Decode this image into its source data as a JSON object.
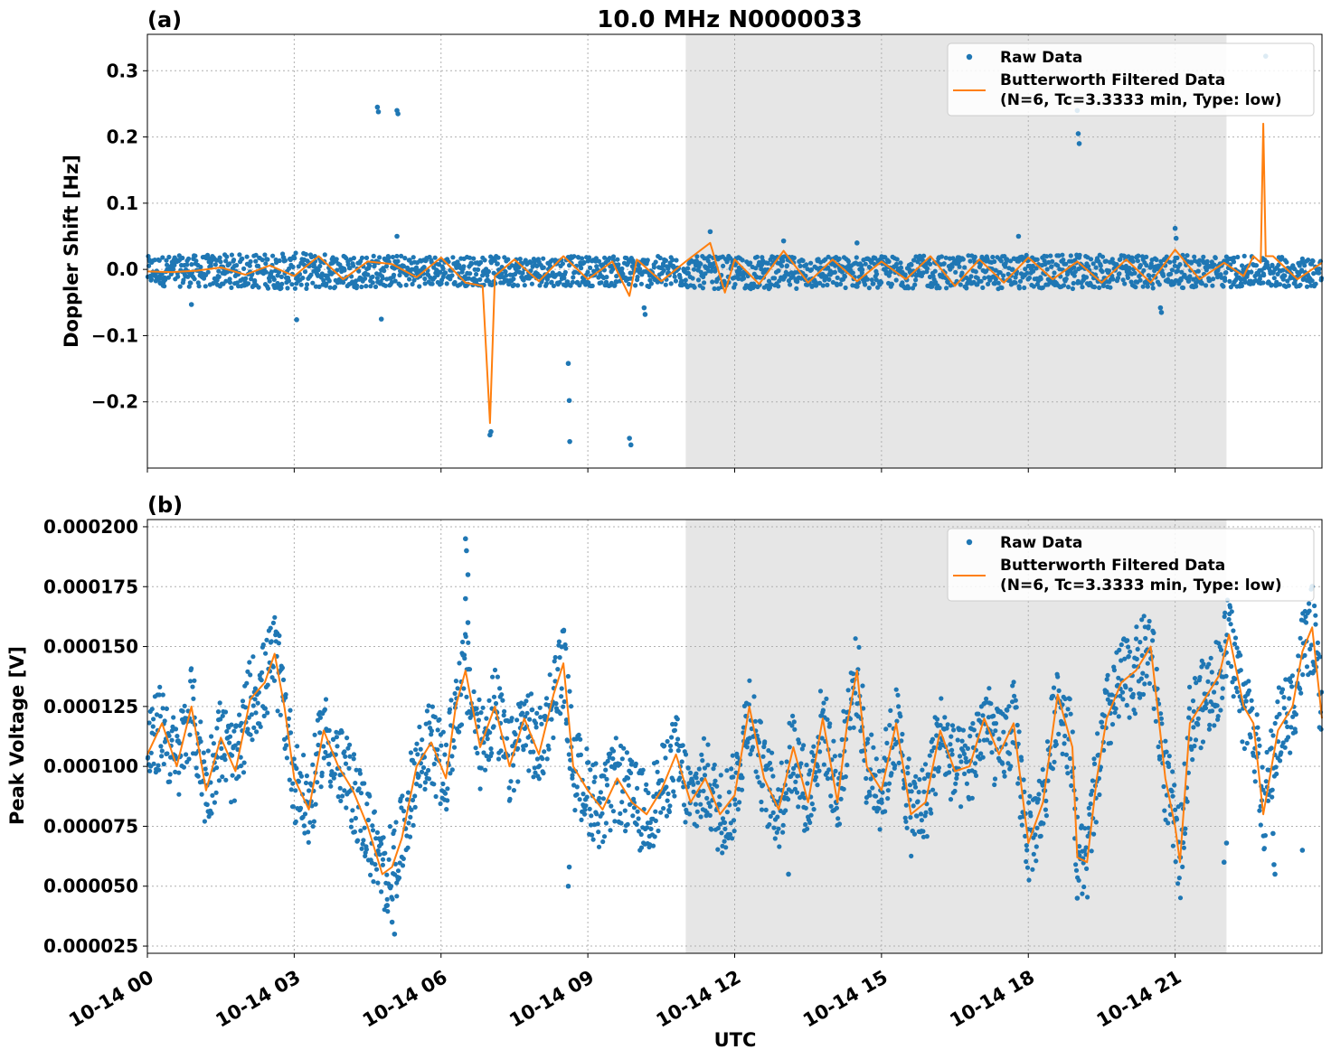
{
  "figure": {
    "title": "10.0 MHz N0000033",
    "xlabel": "UTC",
    "x_tick_labels": [
      "10-14 00",
      "10-14 03",
      "10-14 06",
      "10-14 09",
      "10-14 12",
      "10-14 15",
      "10-14 18",
      "10-14 21"
    ],
    "x_range_hours": [
      0,
      24
    ],
    "shaded_interval_hours": [
      11.0,
      22.05
    ],
    "colors": {
      "raw": "#1f77b4",
      "filtered": "#ff7f0e",
      "shade": "#e6e6e6",
      "grid": "#b0b0b0"
    }
  },
  "legend": {
    "raw_label": "Raw Data",
    "filtered_label_line1": "Butterworth Filtered Data",
    "filtered_label_line2": "(N=6, Tc=3.3333 min, Type: low)",
    "placement": "upper-right"
  },
  "chart_data": [
    {
      "type": "scatter+line",
      "panel_label": "(a)",
      "ylabel": "Doppler Shift [Hz]",
      "ylim": [
        -0.3,
        0.355
      ],
      "yticks": [
        -0.2,
        -0.1,
        0.0,
        0.1,
        0.2,
        0.3
      ],
      "ytick_labels": [
        "−0.2",
        "−0.1",
        "0.0",
        "0.1",
        "0.2",
        "0.3"
      ],
      "grid": true,
      "series": [
        {
          "name": "Raw Data",
          "style": "points",
          "band": [
            [
              0,
              -0.025,
              0.02
            ],
            [
              3,
              -0.03,
              0.025
            ],
            [
              6,
              -0.025,
              0.02
            ],
            [
              9,
              -0.025,
              0.02
            ],
            [
              12,
              -0.03,
              0.02
            ],
            [
              15,
              -0.028,
              0.02
            ],
            [
              18,
              -0.03,
              0.022
            ],
            [
              21,
              -0.028,
              0.022
            ],
            [
              24,
              -0.026,
              0.018
            ]
          ],
          "outliers": [
            [
              0.9,
              -0.053
            ],
            [
              3.05,
              -0.076
            ],
            [
              4.7,
              0.245
            ],
            [
              4.72,
              0.238
            ],
            [
              4.78,
              -0.075
            ],
            [
              5.1,
              0.24
            ],
            [
              5.12,
              0.235
            ],
            [
              5.1,
              0.05
            ],
            [
              7.0,
              -0.25
            ],
            [
              7.02,
              -0.245
            ],
            [
              8.6,
              -0.142
            ],
            [
              8.62,
              -0.198
            ],
            [
              8.63,
              -0.26
            ],
            [
              9.85,
              -0.255
            ],
            [
              9.88,
              -0.265
            ],
            [
              10.15,
              -0.058
            ],
            [
              10.17,
              -0.068
            ],
            [
              11.5,
              0.057
            ],
            [
              13.0,
              0.043
            ],
            [
              14.5,
              0.04
            ],
            [
              17.8,
              0.05
            ],
            [
              19.0,
              0.24
            ],
            [
              19.02,
              0.205
            ],
            [
              19.04,
              0.19
            ],
            [
              20.7,
              -0.058
            ],
            [
              20.72,
              -0.065
            ],
            [
              21.0,
              0.062
            ],
            [
              21.02,
              0.047
            ],
            [
              22.85,
              0.322
            ]
          ]
        },
        {
          "name": "Butterworth Filtered Data",
          "style": "line",
          "points": [
            [
              0,
              -0.003
            ],
            [
              0.5,
              -0.004
            ],
            [
              1.0,
              -0.002
            ],
            [
              1.5,
              0.003
            ],
            [
              2.0,
              -0.008
            ],
            [
              2.5,
              0.006
            ],
            [
              3.0,
              -0.01
            ],
            [
              3.5,
              0.02
            ],
            [
              4.0,
              -0.015
            ],
            [
              4.5,
              0.012
            ],
            [
              5.0,
              0.008
            ],
            [
              5.5,
              -0.012
            ],
            [
              6.0,
              0.018
            ],
            [
              6.5,
              -0.02
            ],
            [
              6.85,
              -0.025
            ],
            [
              7.0,
              -0.232
            ],
            [
              7.1,
              -0.01
            ],
            [
              7.5,
              0.015
            ],
            [
              8.0,
              -0.018
            ],
            [
              8.5,
              0.02
            ],
            [
              9.0,
              -0.015
            ],
            [
              9.5,
              0.012
            ],
            [
              9.85,
              -0.04
            ],
            [
              10.0,
              0.015
            ],
            [
              10.5,
              -0.018
            ],
            [
              11.0,
              0.012
            ],
            [
              11.5,
              0.04
            ],
            [
              11.8,
              -0.035
            ],
            [
              12.0,
              0.015
            ],
            [
              12.5,
              -0.022
            ],
            [
              13.0,
              0.028
            ],
            [
              13.5,
              -0.02
            ],
            [
              14.0,
              0.015
            ],
            [
              14.5,
              -0.018
            ],
            [
              15.0,
              0.012
            ],
            [
              15.5,
              -0.015
            ],
            [
              16.0,
              0.02
            ],
            [
              16.5,
              -0.025
            ],
            [
              17.0,
              0.015
            ],
            [
              17.5,
              -0.02
            ],
            [
              18.0,
              0.018
            ],
            [
              18.5,
              -0.015
            ],
            [
              19.0,
              0.012
            ],
            [
              19.5,
              -0.02
            ],
            [
              20.0,
              0.015
            ],
            [
              20.5,
              -0.02
            ],
            [
              21.0,
              0.03
            ],
            [
              21.5,
              -0.015
            ],
            [
              22.0,
              0.01
            ],
            [
              22.4,
              -0.01
            ],
            [
              22.6,
              0.02
            ],
            [
              22.75,
              0.01
            ],
            [
              22.8,
              0.22
            ],
            [
              22.85,
              0.02
            ],
            [
              23.0,
              0.02
            ],
            [
              23.5,
              -0.015
            ],
            [
              24.0,
              0.01
            ]
          ]
        }
      ]
    },
    {
      "type": "scatter+line",
      "panel_label": "(b)",
      "ylabel": "Peak Voltage [V]",
      "ylim": [
        2.2e-05,
        0.000203
      ],
      "yticks": [
        2.5e-05,
        5e-05,
        7.5e-05,
        0.0001,
        0.000125,
        0.00015,
        0.000175,
        0.0002
      ],
      "ytick_labels": [
        "0.000025",
        "0.000050",
        "0.000075",
        "0.000100",
        "0.000125",
        "0.000150",
        "0.000175",
        "0.000200"
      ],
      "grid": true,
      "series": [
        {
          "name": "Raw Data",
          "style": "points",
          "spread": 1.8e-05,
          "outliers": [
            [
              4.9,
              4.2e-05
            ],
            [
              5.0,
              3.5e-05
            ],
            [
              5.05,
              3e-05
            ],
            [
              6.5,
              0.000195
            ],
            [
              6.52,
              0.00019
            ],
            [
              6.55,
              0.00018
            ],
            [
              6.5,
              0.00017
            ],
            [
              6.55,
              0.00016
            ],
            [
              8.6,
              5e-05
            ],
            [
              8.62,
              5.8e-05
            ],
            [
              13.1,
              5.5e-05
            ],
            [
              19.0,
              4.5e-05
            ],
            [
              22.0,
              6e-05
            ],
            [
              22.05,
              6.8e-05
            ],
            [
              23.0,
              7.2e-05
            ],
            [
              23.02,
              5.9e-05
            ],
            [
              23.04,
              5.5e-05
            ],
            [
              23.6,
              6.5e-05
            ],
            [
              23.8,
              0.000175
            ]
          ]
        },
        {
          "name": "Butterworth Filtered Data",
          "style": "line",
          "points": [
            [
              0,
              0.000105
            ],
            [
              0.3,
              0.000118
            ],
            [
              0.6,
              0.0001
            ],
            [
              0.9,
              0.000125
            ],
            [
              1.2,
              9e-05
            ],
            [
              1.5,
              0.000112
            ],
            [
              1.8,
              9.8e-05
            ],
            [
              2.1,
              0.000128
            ],
            [
              2.4,
              0.000135
            ],
            [
              2.6,
              0.000147
            ],
            [
              2.8,
              0.000125
            ],
            [
              3.0,
              9.5e-05
            ],
            [
              3.3,
              8.2e-05
            ],
            [
              3.6,
              0.000115
            ],
            [
              3.9,
              0.0001
            ],
            [
              4.2,
              9e-05
            ],
            [
              4.5,
              7.5e-05
            ],
            [
              4.8,
              5.5e-05
            ],
            [
              5.0,
              5.8e-05
            ],
            [
              5.2,
              7e-05
            ],
            [
              5.5,
              0.0001
            ],
            [
              5.8,
              0.00011
            ],
            [
              6.1,
              9.5e-05
            ],
            [
              6.3,
              0.000125
            ],
            [
              6.5,
              0.00014
            ],
            [
              6.8,
              0.000108
            ],
            [
              7.1,
              0.000125
            ],
            [
              7.4,
              0.0001
            ],
            [
              7.7,
              0.00012
            ],
            [
              8.0,
              0.000105
            ],
            [
              8.3,
              0.00013
            ],
            [
              8.5,
              0.000143
            ],
            [
              8.7,
              0.0001
            ],
            [
              9.0,
              9e-05
            ],
            [
              9.3,
              8.2e-05
            ],
            [
              9.6,
              9.5e-05
            ],
            [
              9.9,
              8.5e-05
            ],
            [
              10.2,
              8e-05
            ],
            [
              10.5,
              9e-05
            ],
            [
              10.8,
              0.000105
            ],
            [
              11.1,
              8.5e-05
            ],
            [
              11.4,
              9.5e-05
            ],
            [
              11.7,
              8e-05
            ],
            [
              12.0,
              8.8e-05
            ],
            [
              12.3,
              0.000125
            ],
            [
              12.6,
              9.5e-05
            ],
            [
              12.9,
              8.2e-05
            ],
            [
              13.2,
              0.000108
            ],
            [
              13.5,
              8.5e-05
            ],
            [
              13.8,
              0.00012
            ],
            [
              14.1,
              8.5e-05
            ],
            [
              14.3,
              0.000118
            ],
            [
              14.5,
              0.00014
            ],
            [
              14.7,
              0.0001
            ],
            [
              15.0,
              9e-05
            ],
            [
              15.3,
              0.000118
            ],
            [
              15.6,
              8e-05
            ],
            [
              15.9,
              8.5e-05
            ],
            [
              16.2,
              0.000115
            ],
            [
              16.5,
              9.8e-05
            ],
            [
              16.8,
              0.0001
            ],
            [
              17.1,
              0.00012
            ],
            [
              17.4,
              0.000105
            ],
            [
              17.7,
              0.000118
            ],
            [
              18.0,
              6.8e-05
            ],
            [
              18.3,
              8.5e-05
            ],
            [
              18.6,
              0.00013
            ],
            [
              18.9,
              0.000108
            ],
            [
              19.0,
              6.2e-05
            ],
            [
              19.2,
              6e-05
            ],
            [
              19.4,
              9.5e-05
            ],
            [
              19.6,
              0.00012
            ],
            [
              19.9,
              0.000135
            ],
            [
              20.2,
              0.00014
            ],
            [
              20.5,
              0.00015
            ],
            [
              20.8,
              9.5e-05
            ],
            [
              21.0,
              7.5e-05
            ],
            [
              21.1,
              6e-05
            ],
            [
              21.3,
              0.000118
            ],
            [
              21.6,
              0.000128
            ],
            [
              21.9,
              0.000138
            ],
            [
              22.1,
              0.000155
            ],
            [
              22.4,
              0.000125
            ],
            [
              22.6,
              0.000118
            ],
            [
              22.8,
              8e-05
            ],
            [
              23.1,
              0.000115
            ],
            [
              23.4,
              0.000125
            ],
            [
              23.6,
              0.000148
            ],
            [
              23.8,
              0.000158
            ],
            [
              24.0,
              0.00012
            ]
          ]
        }
      ]
    }
  ]
}
